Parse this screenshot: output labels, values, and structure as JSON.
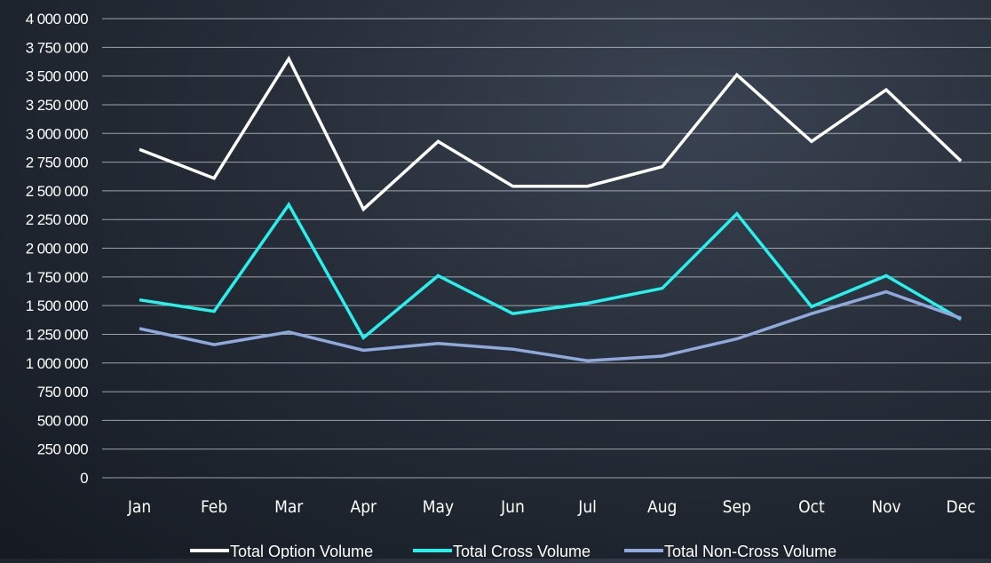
{
  "chart_data": {
    "type": "line",
    "title": "",
    "xlabel": "",
    "ylabel": "",
    "categories": [
      "Jan",
      "Feb",
      "Mar",
      "Apr",
      "May",
      "Jun",
      "Jul",
      "Aug",
      "Sep",
      "Oct",
      "Nov",
      "Dec"
    ],
    "y_ticks": [
      "0",
      "250 000",
      "500 000",
      "750 000",
      "1 000 000",
      "1 250 000",
      "1 500 000",
      "1 750 000",
      "2 000 000",
      "2 250 000",
      "2 500 000",
      "2 750 000",
      "3 000 000",
      "3 250 000",
      "3 500 000",
      "3 750 000",
      "4 000 000"
    ],
    "ylim": [
      0,
      4000000
    ],
    "grid": true,
    "legend_position": "bottom",
    "series": [
      {
        "name": "Total Option Volume",
        "color": "#ffffff",
        "values": [
          2860000,
          2610000,
          3650000,
          2340000,
          2930000,
          2540000,
          2540000,
          2710000,
          3510000,
          2930000,
          3380000,
          2760000
        ]
      },
      {
        "name": "Total Cross Volume",
        "color": "#28f0ec",
        "values": [
          1550000,
          1450000,
          2380000,
          1220000,
          1760000,
          1430000,
          1520000,
          1650000,
          2300000,
          1490000,
          1760000,
          1380000
        ]
      },
      {
        "name": "Total Non-Cross Volume",
        "color": "#8fa9dc",
        "values": [
          1300000,
          1160000,
          1270000,
          1110000,
          1170000,
          1120000,
          1020000,
          1060000,
          1210000,
          1430000,
          1620000,
          1390000
        ]
      }
    ]
  }
}
